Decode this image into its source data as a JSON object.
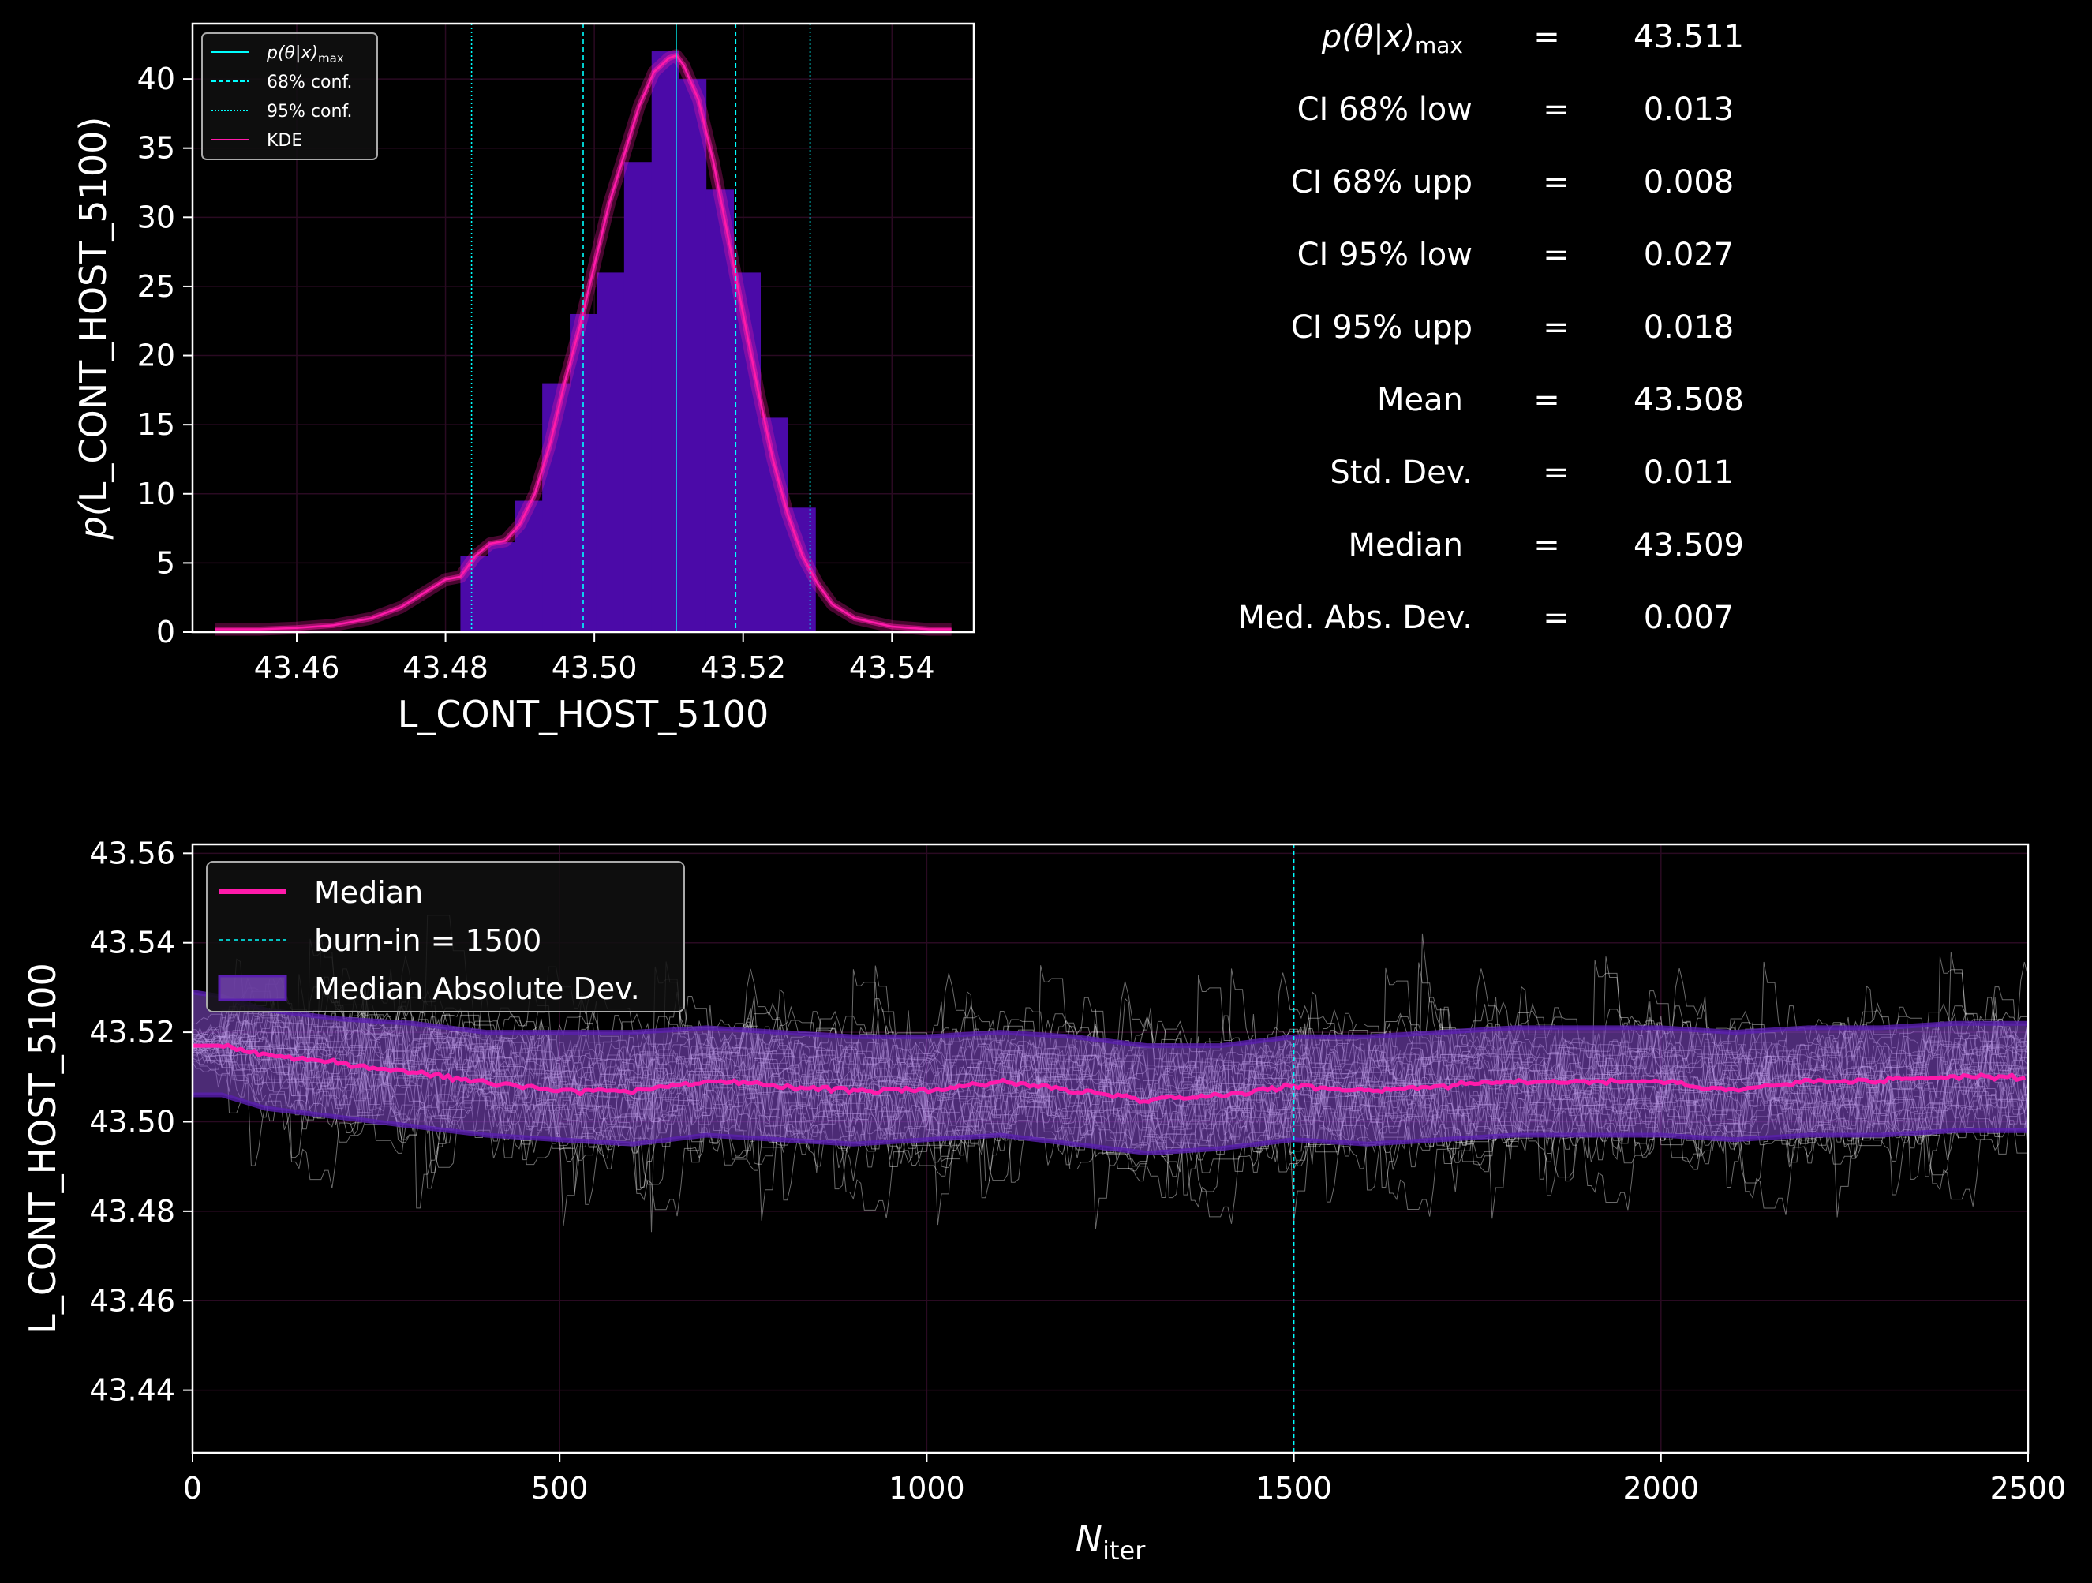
{
  "histogram": {
    "chart_data": {
      "type": "bar",
      "xlabel": "L_CONT_HOST_5100",
      "ylabel_prefix": "p(",
      "ylabel_core": "L_CONT_HOST_5100",
      "ylabel_suffix": ")",
      "xlim": [
        43.446,
        43.551
      ],
      "ylim": [
        0,
        44
      ],
      "xticks": [
        43.46,
        43.48,
        43.5,
        43.52,
        43.54
      ],
      "xtick_labels": [
        "43.46",
        "43.48",
        "43.50",
        "43.52",
        "43.54"
      ],
      "yticks": [
        0,
        5,
        10,
        15,
        20,
        25,
        30,
        35,
        40
      ],
      "ytick_labels": [
        "0",
        "5",
        "10",
        "15",
        "20",
        "25",
        "30",
        "35",
        "40"
      ],
      "bin_edges": [
        43.482,
        43.4857,
        43.4893,
        43.493,
        43.4967,
        43.5003,
        43.504,
        43.5077,
        43.5113,
        43.515,
        43.5187,
        43.5223,
        43.526,
        43.5297
      ],
      "bin_values": [
        5.5,
        6.5,
        9.5,
        18,
        23,
        26,
        34,
        42,
        40,
        32,
        26,
        15.5,
        9,
        4
      ],
      "kde_x": [
        43.449,
        43.455,
        43.46,
        43.465,
        43.47,
        43.474,
        43.477,
        43.48,
        43.482,
        43.484,
        43.486,
        43.488,
        43.49,
        43.492,
        43.494,
        43.496,
        43.498,
        43.5,
        43.502,
        43.504,
        43.506,
        43.508,
        43.51,
        43.511,
        43.512,
        43.514,
        43.516,
        43.518,
        43.52,
        43.522,
        43.524,
        43.526,
        43.528,
        43.53,
        43.532,
        43.535,
        43.54,
        43.545,
        43.548
      ],
      "kde_y": [
        0.2,
        0.2,
        0.3,
        0.5,
        1.0,
        1.8,
        2.8,
        3.8,
        4.0,
        5.5,
        6.4,
        6.6,
        7.8,
        10.0,
        13.5,
        18.0,
        22.0,
        26.5,
        31.0,
        34.5,
        38.0,
        40.5,
        41.5,
        41.7,
        41.0,
        38.5,
        34.0,
        28.5,
        23.0,
        17.5,
        12.5,
        8.5,
        5.5,
        3.5,
        2.0,
        1.0,
        0.4,
        0.2,
        0.2
      ],
      "pmax": 43.511,
      "ci68": [
        43.4985,
        43.519
      ],
      "ci95": [
        43.4835,
        43.529
      ],
      "legend": [
        {
          "label": "p(θ|x)",
          "sub": "max",
          "style": "solid",
          "color": "#00ffff"
        },
        {
          "label": "68% conf.",
          "style": "dashed",
          "color": "#00ffff"
        },
        {
          "label": "95% conf.",
          "style": "dotted",
          "color": "#00ffff"
        },
        {
          "label": "KDE",
          "style": "solid",
          "color": "#ff1aaa"
        }
      ],
      "bar_color": "#4b0aa8",
      "kde_color": "#ff1aaa",
      "line_color": "#00ffff",
      "legend_loc": "upper left"
    }
  },
  "stats": [
    {
      "label": "p(θ|x)",
      "sub": "max",
      "value": "43.511"
    },
    {
      "label": "CI 68% low",
      "value": "0.013"
    },
    {
      "label": "CI 68% upp",
      "value": "0.008"
    },
    {
      "label": "CI 95% low",
      "value": "0.027"
    },
    {
      "label": "CI 95% upp",
      "value": "0.018"
    },
    {
      "label": "Mean",
      "value": "43.508"
    },
    {
      "label": "Std.  Dev.",
      "value": "0.011"
    },
    {
      "label": "Median",
      "value": "43.509"
    },
    {
      "label": "Med. Abs. Dev.",
      "value": "0.007"
    }
  ],
  "stats_eq": "=",
  "trace": {
    "chart_data": {
      "type": "line",
      "ylabel": "L_CONT_HOST_5100",
      "xlabel_main": "N",
      "xlabel_sub": "iter",
      "xlim": [
        0,
        2500
      ],
      "ylim": [
        43.426,
        43.562
      ],
      "xticks": [
        0,
        500,
        1000,
        1500,
        2000,
        2500
      ],
      "xtick_labels": [
        "0",
        "500",
        "1000",
        "1500",
        "2000",
        "2500"
      ],
      "yticks": [
        43.44,
        43.46,
        43.48,
        43.5,
        43.52,
        43.54,
        43.56
      ],
      "ytick_labels": [
        "43.44",
        "43.46",
        "43.48",
        "43.50",
        "43.52",
        "43.54",
        "43.56"
      ],
      "burn_in": 1500,
      "median_x": [
        0,
        40,
        100,
        200,
        300,
        400,
        500,
        600,
        700,
        800,
        900,
        1000,
        1100,
        1200,
        1300,
        1400,
        1500,
        1600,
        1700,
        1800,
        1900,
        2000,
        2100,
        2200,
        2300,
        2400,
        2500
      ],
      "median_y": [
        43.517,
        43.517,
        43.515,
        43.513,
        43.511,
        43.509,
        43.507,
        43.507,
        43.509,
        43.508,
        43.507,
        43.507,
        43.509,
        43.507,
        43.505,
        43.506,
        43.508,
        43.507,
        43.508,
        43.509,
        43.509,
        43.509,
        43.507,
        43.509,
        43.509,
        43.51,
        43.51
      ],
      "mad_upper": [
        43.529,
        43.528,
        43.525,
        43.523,
        43.522,
        43.52,
        43.52,
        43.52,
        43.521,
        43.52,
        43.519,
        43.519,
        43.52,
        43.519,
        43.517,
        43.517,
        43.519,
        43.519,
        43.52,
        43.521,
        43.521,
        43.521,
        43.52,
        43.521,
        43.521,
        43.522,
        43.522
      ],
      "mad_lower": [
        43.506,
        43.506,
        43.503,
        43.501,
        43.499,
        43.497,
        43.496,
        43.495,
        43.497,
        43.496,
        43.495,
        43.496,
        43.497,
        43.495,
        43.493,
        43.494,
        43.496,
        43.495,
        43.496,
        43.497,
        43.497,
        43.497,
        43.496,
        43.497,
        43.497,
        43.498,
        43.498
      ],
      "legend": [
        {
          "label": "Median",
          "color": "#ff1aaa"
        },
        {
          "label": "burn-in = 1500",
          "color": "#00ffff"
        },
        {
          "label": "Median Absolute Dev.",
          "color": "#8a4fd6"
        }
      ],
      "legend_loc": "upper left"
    }
  }
}
